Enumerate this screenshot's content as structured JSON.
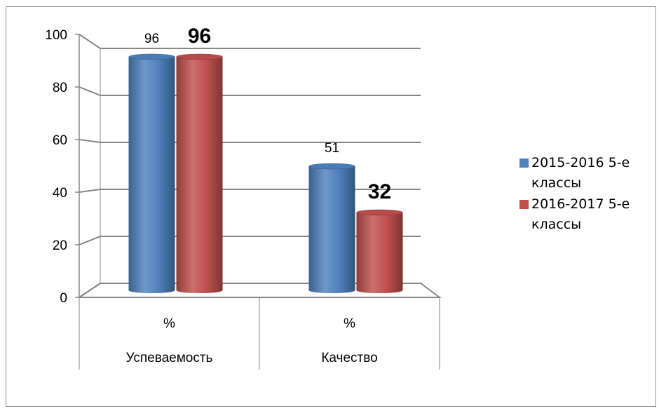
{
  "chart_data": {
    "type": "bar",
    "style": "3d-cylinder",
    "categories": [
      {
        "line1": "%",
        "line2": "Успеваемость"
      },
      {
        "line1": "%",
        "line2": "Качество"
      }
    ],
    "series": [
      {
        "name": "2015-2016 5-е классы",
        "name_lines": [
          "2015-2016 5-е",
          "классы"
        ],
        "color": "#4F81BD",
        "values": [
          96,
          51
        ],
        "label_bold": false
      },
      {
        "name": "2016-2017 5-е классы",
        "name_lines": [
          "2016-2017 5-е",
          "классы"
        ],
        "color": "#C0504D",
        "values": [
          96,
          32
        ],
        "label_bold": true
      }
    ],
    "y_ticks": [
      "0",
      "20",
      "40",
      "60",
      "80",
      "100"
    ],
    "ylim": [
      0,
      100
    ],
    "grid": true,
    "legend": "right"
  }
}
